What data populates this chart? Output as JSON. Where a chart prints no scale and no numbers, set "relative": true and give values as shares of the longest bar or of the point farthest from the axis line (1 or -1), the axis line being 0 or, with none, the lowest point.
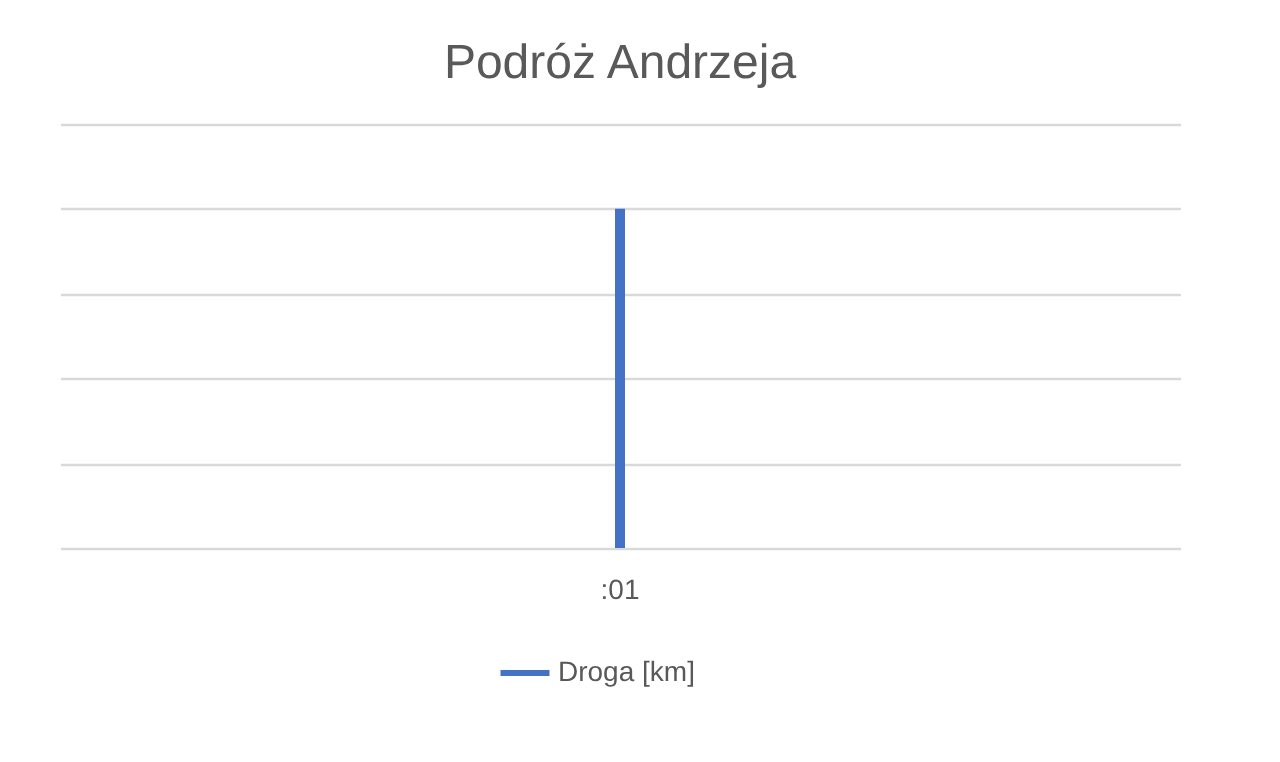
{
  "chart_data": {
    "type": "bar",
    "title": "Podróż Andrzeja",
    "categories": [
      ":01"
    ],
    "relative": true,
    "grid": "y",
    "legend": "bottom",
    "series": [
      {
        "name": "Droga [km]",
        "color": "#4472c4",
        "values": [
          1
        ]
      }
    ]
  }
}
